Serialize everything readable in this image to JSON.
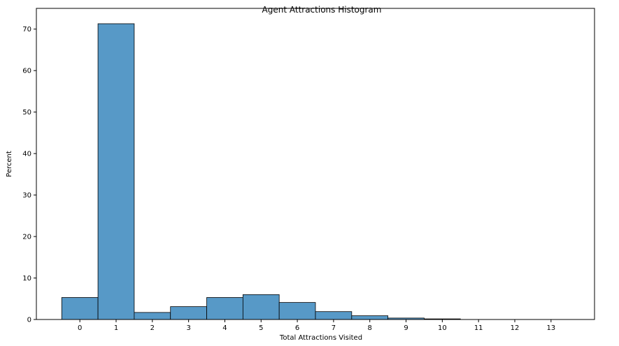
{
  "chart_data": {
    "type": "bar",
    "title": "Agent Attractions Histogram",
    "xlabel": "Total Attractions Visited",
    "ylabel": "Percent",
    "categories": [
      "0",
      "1",
      "2",
      "3",
      "4",
      "5",
      "6",
      "7",
      "8",
      "9",
      "10",
      "11",
      "12",
      "13"
    ],
    "values": [
      5.3,
      71.3,
      1.7,
      3.1,
      5.3,
      6.0,
      4.1,
      1.9,
      0.9,
      0.35,
      0.15,
      0.0,
      0.0,
      0.0
    ],
    "ylim": [
      0,
      75
    ],
    "yticks": [
      0,
      10,
      20,
      30,
      40,
      50,
      60,
      70
    ],
    "xlim": [
      -1.2,
      14.2
    ],
    "grid": false,
    "colors": {
      "bar_fill": "#5799c7",
      "bar_edge": "#000000",
      "axis": "#000000"
    }
  }
}
